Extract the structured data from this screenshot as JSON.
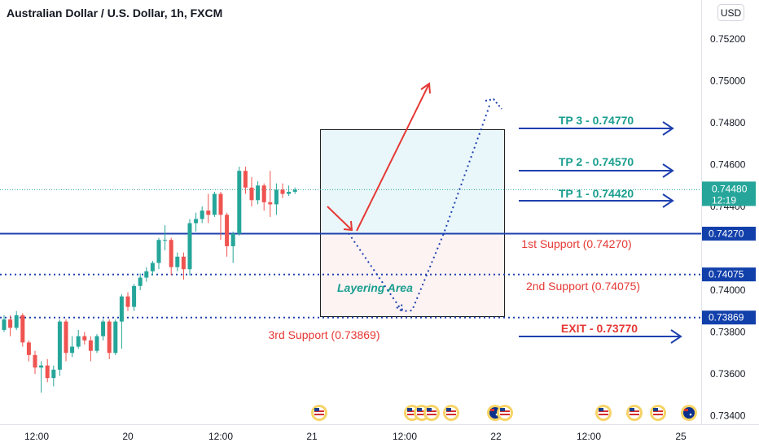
{
  "header": {
    "title": "Australian Dollar / U.S. Dollar, 1h, FXCM",
    "currency_button": "USD"
  },
  "colors": {
    "up": "#26a69a",
    "down": "#ef5350",
    "blue": "#1e40af",
    "teal": "#1a9e8f",
    "red": "#e53935",
    "tag": "#1240ab",
    "price_tag": "#26a69a"
  },
  "chart_data": {
    "type": "candlestick",
    "x_tick_labels": [
      "12:00",
      "20",
      "12:00",
      "21",
      "12:00",
      "22",
      "12:00",
      "25"
    ],
    "y_tick_labels": [
      "0.75200",
      "0.75000",
      "0.74800",
      "0.74600",
      "0.74400",
      "0.74000",
      "0.73800",
      "0.73600",
      "0.73400"
    ],
    "ylim": [
      0.7333,
      0.7536
    ],
    "candles": [
      [
        0.7381,
        0.7386,
        0.738,
        0.7388
      ],
      [
        0.7386,
        0.7382,
        0.7378,
        0.7388
      ],
      [
        0.7382,
        0.7388,
        0.7381,
        0.739
      ],
      [
        0.7388,
        0.7375,
        0.7373,
        0.7389
      ],
      [
        0.7375,
        0.7369,
        0.7366,
        0.7376
      ],
      [
        0.7369,
        0.7363,
        0.736,
        0.7371
      ],
      [
        0.7363,
        0.7364,
        0.7351,
        0.7366
      ],
      [
        0.7364,
        0.7358,
        0.7356,
        0.7367
      ],
      [
        0.7358,
        0.7362,
        0.7354,
        0.7364
      ],
      [
        0.7362,
        0.7385,
        0.7359,
        0.7386
      ],
      [
        0.7385,
        0.737,
        0.7366,
        0.7386
      ],
      [
        0.737,
        0.7373,
        0.7368,
        0.7378
      ],
      [
        0.7373,
        0.7378,
        0.7372,
        0.7381
      ],
      [
        0.7378,
        0.7376,
        0.7374,
        0.738
      ],
      [
        0.7376,
        0.7371,
        0.7366,
        0.7378
      ],
      [
        0.7371,
        0.7378,
        0.737,
        0.7379
      ],
      [
        0.7378,
        0.7385,
        0.7376,
        0.7386
      ],
      [
        0.7385,
        0.737,
        0.7367,
        0.7386
      ],
      [
        0.737,
        0.7385,
        0.7369,
        0.7386
      ],
      [
        0.7385,
        0.7397,
        0.7372,
        0.7398
      ],
      [
        0.7397,
        0.7392,
        0.739,
        0.7399
      ],
      [
        0.7392,
        0.7402,
        0.739,
        0.7403
      ],
      [
        0.7402,
        0.7406,
        0.74,
        0.7408
      ],
      [
        0.7406,
        0.7409,
        0.7404,
        0.7411
      ],
      [
        0.7409,
        0.7413,
        0.7407,
        0.7414
      ],
      [
        0.7413,
        0.7424,
        0.741,
        0.7425
      ],
      [
        0.7424,
        0.7424,
        0.7419,
        0.7431
      ],
      [
        0.7424,
        0.7411,
        0.7407,
        0.7425
      ],
      [
        0.7411,
        0.7416,
        0.7409,
        0.7418
      ],
      [
        0.7416,
        0.741,
        0.7405,
        0.7418
      ],
      [
        0.741,
        0.7432,
        0.7407,
        0.7434
      ],
      [
        0.7432,
        0.7434,
        0.7428,
        0.7437
      ],
      [
        0.7434,
        0.7438,
        0.7432,
        0.744
      ],
      [
        0.7438,
        0.7436,
        0.7432,
        0.7446
      ],
      [
        0.7436,
        0.7446,
        0.7435,
        0.7447
      ],
      [
        0.7446,
        0.7436,
        0.7424,
        0.7447
      ],
      [
        0.7436,
        0.7421,
        0.7416,
        0.7437
      ],
      [
        0.7421,
        0.7427,
        0.7413,
        0.7428
      ],
      [
        0.7427,
        0.7457,
        0.7426,
        0.7459
      ],
      [
        0.7457,
        0.7449,
        0.7446,
        0.7459
      ],
      [
        0.7449,
        0.7443,
        0.744,
        0.7454
      ],
      [
        0.7443,
        0.745,
        0.7441,
        0.7452
      ],
      [
        0.745,
        0.7442,
        0.7438,
        0.7451
      ],
      [
        0.7442,
        0.7441,
        0.7435,
        0.7457
      ],
      [
        0.7441,
        0.7448,
        0.7436,
        0.7451
      ],
      [
        0.7448,
        0.7446,
        0.7444,
        0.7451
      ],
      [
        0.7446,
        0.7447,
        0.7445,
        0.745
      ],
      [
        0.7447,
        0.7448,
        0.7446,
        0.7449
      ]
    ]
  },
  "current_price": {
    "value": "0.74480",
    "countdown": "12:19"
  },
  "levels": {
    "support1": {
      "value": 0.7427,
      "tag": "0.74270",
      "label": "1st Support (0.74270)"
    },
    "support2": {
      "value": 0.74075,
      "tag": "0.74075",
      "label": "2nd Support (0.74075)"
    },
    "support3": {
      "value": 0.73869,
      "tag": "0.73869",
      "label": "3rd Support (0.73869)"
    }
  },
  "targets": [
    {
      "label": "TP 3 - 0.74770"
    },
    {
      "label": "TP 2 - 0.74570"
    },
    {
      "label": "TP 1 - 0.74420"
    }
  ],
  "exit_label": "EXIT - 0.73770",
  "layering_label": "Layering Area",
  "events": [
    {
      "flag": "us-flag-icon"
    },
    {
      "flag": "us-flag-icon"
    },
    {
      "flag": "us-flag-icon"
    },
    {
      "flag": "us-flag-icon"
    },
    {
      "flag": "us-flag-icon"
    },
    {
      "flag": "au-flag-icon"
    },
    {
      "flag": "us-flag-icon"
    },
    {
      "flag": "us-flag-icon"
    },
    {
      "flag": "us-flag-icon"
    },
    {
      "flag": "us-flag-icon"
    },
    {
      "flag": "au-flag-icon"
    }
  ]
}
